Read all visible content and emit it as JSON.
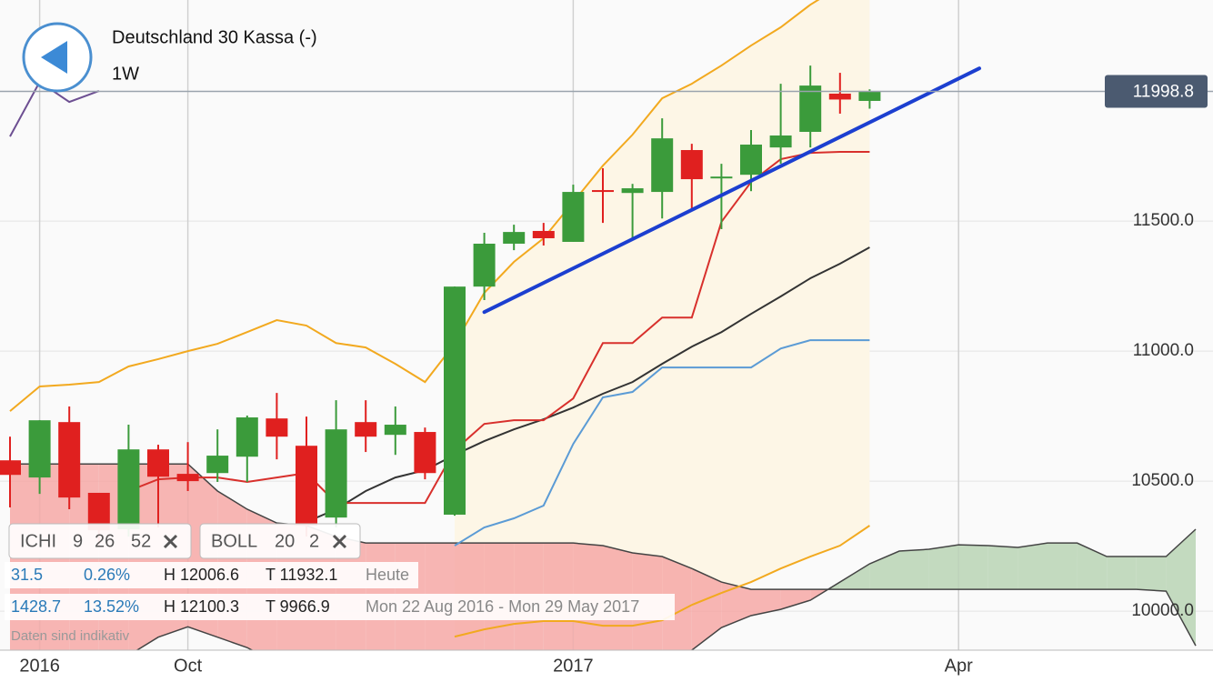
{
  "chart_data": {
    "type": "candlestick",
    "categories": [
      null,
      "2016",
      null,
      null,
      null,
      null,
      "Oct",
      null,
      null,
      null,
      null,
      null,
      null,
      null,
      null,
      null,
      null,
      null,
      null,
      "2017",
      null,
      null,
      null,
      null,
      null,
      null,
      null,
      null,
      null,
      null,
      null,
      null,
      "Apr",
      null,
      null,
      null,
      null,
      null,
      null,
      null,
      null
    ],
    "open": [
      10580,
      10514,
      10727,
      10455,
      10315,
      10622,
      10528,
      10531,
      10594,
      10741,
      10636,
      10360,
      10727,
      10678,
      10689,
      10371,
      11248,
      11413,
      11462,
      11420,
      11619,
      11608,
      11612,
      11773,
      11664,
      11678,
      11783,
      11843,
      11990,
      11962,
      null,
      null,
      null,
      null,
      null,
      null,
      null,
      null,
      null,
      null,
      null
    ],
    "high": [
      10671,
      10734,
      10787,
      10455,
      10717,
      10640,
      10650,
      10699,
      10752,
      10839,
      10748,
      10811,
      10811,
      10787,
      10706,
      11248,
      11455,
      11486,
      11493,
      11640,
      11703,
      11643,
      11895,
      11797,
      11720,
      11850,
      12028,
      12098,
      12070,
      12006.6,
      null,
      null,
      null,
      null,
      null,
      null,
      null,
      null,
      null,
      null,
      null
    ],
    "low": [
      10399,
      10451,
      10392,
      10252,
      10287,
      10322,
      10462,
      10497,
      10497,
      10584,
      10287,
      10322,
      10612,
      10601,
      10507,
      10367,
      11196,
      11388,
      11406,
      11420,
      11493,
      11434,
      11510,
      11545,
      11469,
      11615,
      11720,
      11783,
      11913,
      11932.1,
      null,
      null,
      null,
      null,
      null,
      null,
      null,
      null,
      null,
      null,
      null
    ],
    "close": [
      10524,
      10734,
      10437,
      10311,
      10622,
      10517,
      10500,
      10598,
      10745,
      10671,
      10329,
      10699,
      10671,
      10717,
      10531,
      11248,
      11413,
      11458,
      11434,
      11612,
      11612,
      11626,
      11818,
      11661,
      11671,
      11794,
      11829,
      12021,
      11967.3,
      11998.8,
      null,
      null,
      null,
      null,
      null,
      null,
      null,
      null,
      null,
      null,
      null
    ],
    "up_color": "#3b9b3b",
    "down_color": "#e0201f",
    "bollinger": {
      "upper": [
        10769,
        10864,
        10871,
        10881,
        10941,
        10969,
        11000,
        11028,
        11073,
        11119,
        11098,
        11031,
        11014,
        10951,
        10881,
        11028,
        11224,
        11343,
        11434,
        11573,
        11713,
        11832,
        11972,
        12028,
        12098,
        12175,
        12245,
        12332,
        12402,
        12472,
        null,
        null,
        null,
        null,
        null,
        null,
        null,
        null,
        null,
        null,
        null
      ],
      "middle": [
        null,
        null,
        null,
        null,
        null,
        null,
        null,
        null,
        null,
        null,
        10343,
        10392,
        10462,
        10514,
        10542,
        10601,
        10654,
        10699,
        10738,
        10783,
        10836,
        10881,
        10951,
        11017,
        11073,
        11143,
        11210,
        11280,
        11336,
        11399,
        null,
        null,
        null,
        null,
        null,
        null,
        null,
        null,
        null,
        null,
        null
      ],
      "lower": [
        null,
        null,
        null,
        null,
        null,
        null,
        null,
        null,
        null,
        null,
        null,
        null,
        null,
        null,
        null,
        9902,
        9930,
        9951,
        9962,
        9962,
        9944,
        9944,
        9965,
        10024,
        10070,
        10112,
        10164,
        10210,
        10252,
        10329,
        null,
        null,
        null,
        null,
        null,
        null,
        null,
        null,
        null,
        null,
        null
      ],
      "color": "#f2a91f",
      "middle_color": "#333333",
      "fill": "#fdf6e6"
    },
    "ichimoku": {
      "tenkan": [
        null,
        null,
        null,
        null,
        10462,
        10507,
        10514,
        10514,
        10497,
        10514,
        10531,
        10416,
        10416,
        10416,
        10416,
        10619,
        10720,
        10734,
        10734,
        10818,
        11031,
        11031,
        11129,
        11129,
        11497,
        11650,
        11738,
        11762,
        11766,
        11766,
        null,
        null,
        null,
        null,
        null,
        null,
        null,
        null,
        null,
        null,
        null
      ],
      "kijun": [
        null,
        null,
        null,
        null,
        null,
        null,
        null,
        null,
        null,
        null,
        null,
        null,
        null,
        null,
        null,
        10252,
        10322,
        10357,
        10406,
        10643,
        10822,
        10843,
        10937,
        10937,
        10937,
        10937,
        11010,
        11042,
        11042,
        11042,
        null,
        null,
        null,
        null,
        null,
        null,
        null,
        null,
        null,
        null,
        null
      ],
      "chikou": [
        11825,
        12035,
        11958,
        12000,
        null,
        null,
        null,
        null,
        null,
        null,
        null,
        null,
        null,
        null,
        null,
        null,
        null,
        null,
        null,
        null,
        null,
        null,
        null,
        null,
        null,
        null,
        null,
        null,
        null,
        null,
        null,
        null,
        null,
        null,
        null,
        null,
        null,
        null,
        null,
        null,
        null
      ],
      "span_a": [
        9830,
        9830,
        9830,
        9830,
        9830,
        9900,
        9940,
        9900,
        9860,
        9800,
        9800,
        9800,
        9800,
        9800,
        9800,
        9800,
        9800,
        9800,
        9800,
        9800,
        9800,
        9800,
        9800,
        9850,
        9937,
        9983,
        10007,
        10042,
        10112,
        10182,
        10231,
        10238,
        10255,
        10252,
        10245,
        10262,
        10262,
        10210,
        10210,
        10210,
        10315
      ],
      "span_b": [
        10566,
        10566,
        10566,
        10566,
        10566,
        10566,
        10566,
        10462,
        10392,
        10339,
        10329,
        10287,
        10262,
        10262,
        10262,
        10262,
        10262,
        10262,
        10262,
        10262,
        10252,
        10224,
        10210,
        10164,
        10112,
        10084,
        10084,
        10084,
        10084,
        10084,
        10084,
        10084,
        10084,
        10084,
        10084,
        10084,
        10084,
        10084,
        10084,
        10077,
        9867
      ],
      "tenkan_color": "#d8302c",
      "kijun_color": "#5b9bd5",
      "chikou_color": "#6d4f92",
      "span_color": "#444444",
      "cloud_up_color": "#b8d3b4",
      "cloud_down_color": "#f6a8a6"
    },
    "trendline": {
      "from": [
        16,
        11150
      ],
      "to": [
        32.7,
        12087
      ],
      "color": "#1c3fd0"
    },
    "last_price": 11998.8,
    "ylim": [
      9850,
      12350
    ],
    "yticks": [
      {
        "value": 10000,
        "label": "10000.0"
      },
      {
        "value": 10500,
        "label": "10500.0"
      },
      {
        "value": 11000,
        "label": "11000.0"
      },
      {
        "value": 11500,
        "label": "11500.0"
      }
    ],
    "grid": true
  },
  "header": {
    "title": "Deutschland 30 Kassa (-)",
    "timeframe": "1W"
  },
  "indicators": [
    {
      "name": "ICHI",
      "params": [
        9,
        26,
        52
      ]
    },
    {
      "name": "BOLL",
      "params": [
        20,
        2
      ]
    }
  ],
  "stats": [
    {
      "change": 31.5,
      "change_pct": "0.26%",
      "high": "H 12006.6",
      "low": "T 11932.1",
      "period": "Heute"
    },
    {
      "change": 1428.7,
      "change_pct": "13.52%",
      "high": "H 12100.3",
      "low": "T 9966.9",
      "period": "Mon 22 Aug 2016 - Mon 29 May 2017"
    }
  ],
  "disclaimer": "Daten sind indikativ"
}
